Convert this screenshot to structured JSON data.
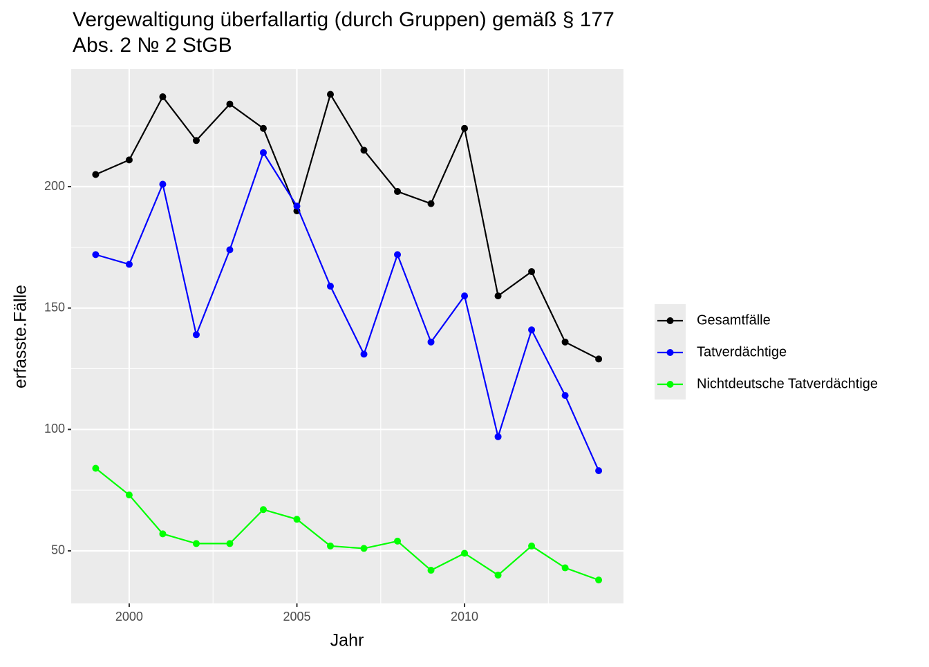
{
  "chart_data": {
    "type": "line",
    "title": [
      "Vergewaltigung überfallartig (durch Gruppen) gemäß § 177",
      "Abs. 2 № 2 StGB"
    ],
    "x_label": "Jahr",
    "y_label": "erfasste.Fälle",
    "x": [
      1999,
      2000,
      2001,
      2002,
      2003,
      2004,
      2005,
      2006,
      2007,
      2008,
      2009,
      2010,
      2011,
      2012,
      2013,
      2014
    ],
    "series": [
      {
        "name": "Gesamtfälle",
        "color": "#000000",
        "values": [
          205,
          211,
          237,
          219,
          234,
          224,
          190,
          238,
          215,
          198,
          193,
          224,
          155,
          165,
          136,
          129
        ]
      },
      {
        "name": "Tatverdächtige",
        "color": "#0000ff",
        "values": [
          172,
          168,
          201,
          139,
          174,
          214,
          192,
          159,
          131,
          172,
          136,
          155,
          97,
          141,
          114,
          83
        ]
      },
      {
        "name": "Nichtdeutsche Tatverdächtige",
        "color": "#00ff00",
        "values": [
          84,
          73,
          57,
          53,
          53,
          67,
          63,
          52,
          51,
          54,
          42,
          49,
          40,
          52,
          43,
          38
        ]
      }
    ],
    "xlim": [
      1998.27,
      2014.74
    ],
    "xticks": [
      2000,
      2005,
      2010
    ],
    "ylim": [
      28.35,
      248.4
    ],
    "yticks": [
      50,
      100,
      150,
      200
    ],
    "grid": true,
    "legend": "right"
  }
}
